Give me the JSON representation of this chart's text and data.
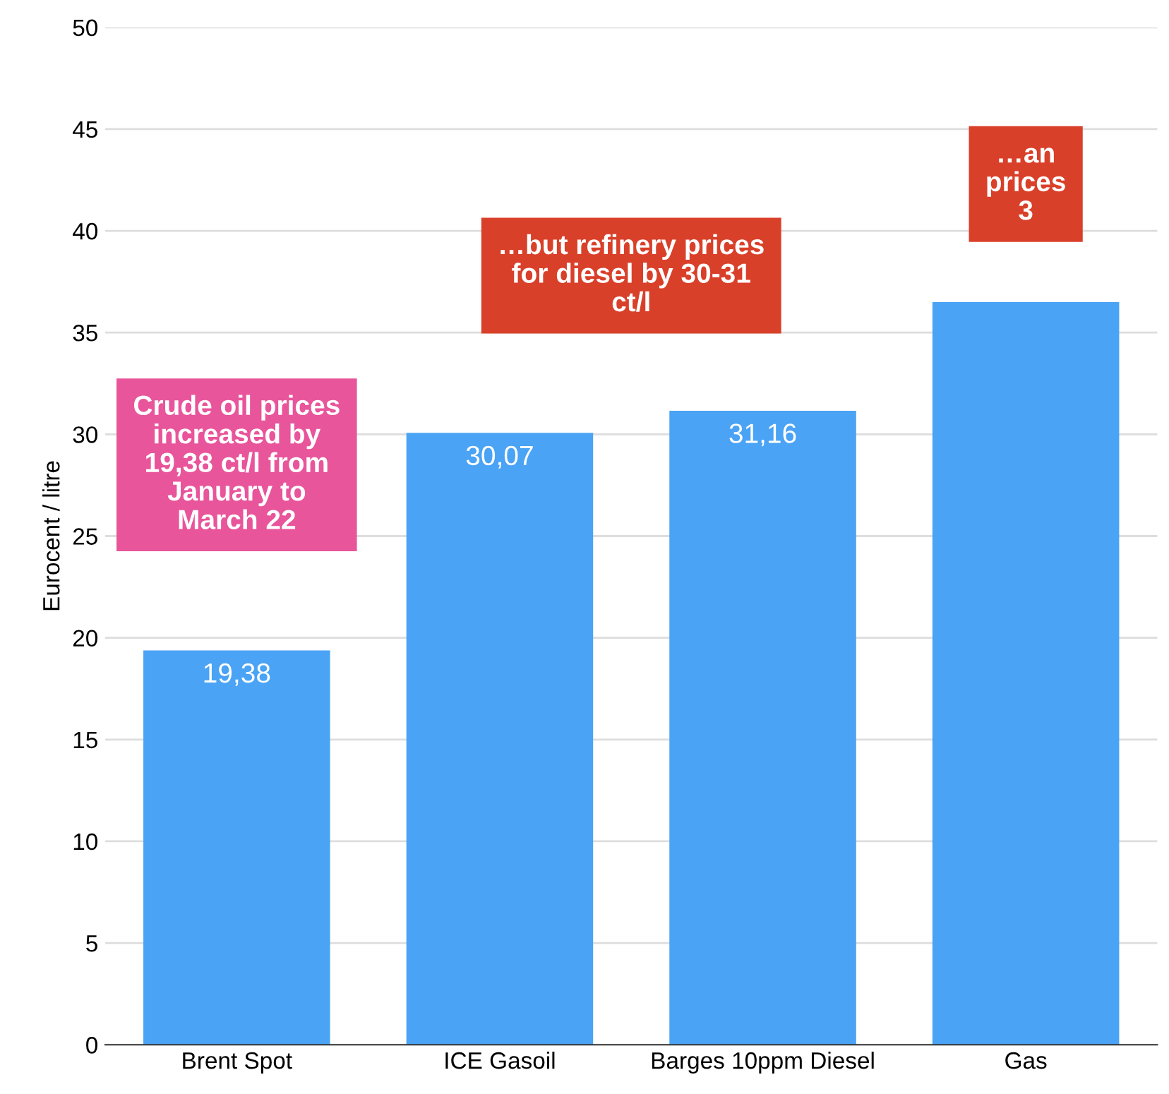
{
  "chart_data": {
    "type": "bar",
    "ylabel": "Eurocent / litre",
    "categories": [
      "Brent Spot",
      "ICE Gasoil",
      "Barges 10ppm Diesel",
      "Gas"
    ],
    "values": [
      19.38,
      30.07,
      31.16,
      36.5
    ],
    "value_labels": [
      "19,38",
      "30,07",
      "31,16",
      null
    ],
    "color": "#4aa3f5",
    "ylim": [
      0,
      50
    ],
    "yticks": [
      0,
      5,
      10,
      15,
      20,
      25,
      30,
      35,
      40,
      45,
      50
    ],
    "grid": "y",
    "annotations": [
      "Crude oil prices\nincreased by\n19,38 ct/l from\nJanuary to\nMarch 22",
      "…but refinery prices\nfor diesel by 30-31\nct/l",
      "…an\nprices\n3"
    ]
  }
}
